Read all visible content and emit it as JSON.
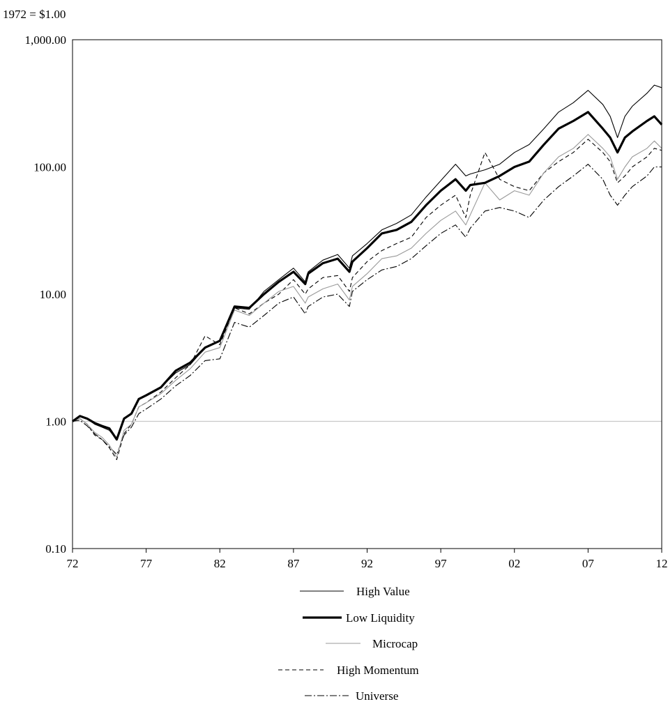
{
  "chart_data": {
    "type": "line",
    "title": "1972 = $1.00",
    "xlabel": "",
    "ylabel": "",
    "y_scale": "log",
    "ylim": [
      0.1,
      1000
    ],
    "xlim": [
      1972,
      2012
    ],
    "grid": false,
    "legend_position": "bottom",
    "reference_line": 1.0,
    "x_ticks": [
      {
        "value": 1972,
        "label": "72"
      },
      {
        "value": 1977,
        "label": "77"
      },
      {
        "value": 1982,
        "label": "82"
      },
      {
        "value": 1987,
        "label": "87"
      },
      {
        "value": 1992,
        "label": "92"
      },
      {
        "value": 1997,
        "label": "97"
      },
      {
        "value": 2002,
        "label": "02"
      },
      {
        "value": 2007,
        "label": "07"
      },
      {
        "value": 2012,
        "label": "12"
      }
    ],
    "y_ticks": [
      {
        "value": 0.1,
        "label": "0.10"
      },
      {
        "value": 1,
        "label": "1.00"
      },
      {
        "value": 10,
        "label": "10.00"
      },
      {
        "value": 100,
        "label": "100.00"
      },
      {
        "value": 1000,
        "label": "1,000.00"
      }
    ],
    "series": [
      {
        "name": "High Value",
        "color": "#000000",
        "style": "thin-solid",
        "points": [
          [
            1972,
            1.0
          ],
          [
            1972.5,
            1.1
          ],
          [
            1973,
            1.05
          ],
          [
            1973.5,
            0.95
          ],
          [
            1974,
            0.9
          ],
          [
            1974.5,
            0.85
          ],
          [
            1975,
            0.72
          ],
          [
            1975.5,
            1.05
          ],
          [
            1976,
            1.15
          ],
          [
            1976.5,
            1.5
          ],
          [
            1977,
            1.6
          ],
          [
            1978,
            1.85
          ],
          [
            1979,
            2.4
          ],
          [
            1980,
            2.8
          ],
          [
            1981,
            3.8
          ],
          [
            1982,
            4.3
          ],
          [
            1983,
            7.8
          ],
          [
            1984,
            7.6
          ],
          [
            1985,
            10.5
          ],
          [
            1986,
            13.0
          ],
          [
            1987,
            16.0
          ],
          [
            1987.8,
            12.5
          ],
          [
            1988,
            15.0
          ],
          [
            1989,
            18.5
          ],
          [
            1990,
            20.5
          ],
          [
            1990.8,
            16.0
          ],
          [
            1991,
            20.0
          ],
          [
            1992,
            25.0
          ],
          [
            1993,
            32.0
          ],
          [
            1994,
            36.0
          ],
          [
            1995,
            42.0
          ],
          [
            1996,
            58.0
          ],
          [
            1997,
            78.0
          ],
          [
            1998,
            105.0
          ],
          [
            1998.7,
            85.0
          ],
          [
            1999,
            88.0
          ],
          [
            2000,
            95.0
          ],
          [
            2001,
            105.0
          ],
          [
            2002,
            130.0
          ],
          [
            2003,
            150.0
          ],
          [
            2004,
            200.0
          ],
          [
            2005,
            270.0
          ],
          [
            2006,
            320.0
          ],
          [
            2007,
            400.0
          ],
          [
            2008,
            310.0
          ],
          [
            2008.5,
            250.0
          ],
          [
            2009,
            170.0
          ],
          [
            2009.5,
            250.0
          ],
          [
            2010,
            300.0
          ],
          [
            2011,
            380.0
          ],
          [
            2011.5,
            440.0
          ],
          [
            2012,
            420.0
          ]
        ]
      },
      {
        "name": "Low Liquidity",
        "color": "#000000",
        "style": "thick-solid",
        "points": [
          [
            1972,
            1.0
          ],
          [
            1972.5,
            1.1
          ],
          [
            1973,
            1.05
          ],
          [
            1973.5,
            0.97
          ],
          [
            1974,
            0.92
          ],
          [
            1974.5,
            0.88
          ],
          [
            1975,
            0.72
          ],
          [
            1975.5,
            1.05
          ],
          [
            1976,
            1.15
          ],
          [
            1976.5,
            1.5
          ],
          [
            1977,
            1.6
          ],
          [
            1978,
            1.85
          ],
          [
            1979,
            2.5
          ],
          [
            1980,
            2.9
          ],
          [
            1981,
            3.8
          ],
          [
            1982,
            4.3
          ],
          [
            1983,
            8.0
          ],
          [
            1984,
            7.8
          ],
          [
            1985,
            10.0
          ],
          [
            1986,
            12.5
          ],
          [
            1987,
            15.0
          ],
          [
            1987.8,
            12.0
          ],
          [
            1988,
            14.5
          ],
          [
            1989,
            17.5
          ],
          [
            1990,
            19.0
          ],
          [
            1990.8,
            15.0
          ],
          [
            1991,
            18.0
          ],
          [
            1992,
            23.0
          ],
          [
            1993,
            30.0
          ],
          [
            1994,
            32.0
          ],
          [
            1995,
            37.0
          ],
          [
            1996,
            50.0
          ],
          [
            1997,
            65.0
          ],
          [
            1998,
            80.0
          ],
          [
            1998.7,
            65.0
          ],
          [
            1999,
            72.0
          ],
          [
            2000,
            75.0
          ],
          [
            2001,
            85.0
          ],
          [
            2002,
            100.0
          ],
          [
            2003,
            110.0
          ],
          [
            2004,
            150.0
          ],
          [
            2005,
            200.0
          ],
          [
            2006,
            230.0
          ],
          [
            2007,
            270.0
          ],
          [
            2008,
            200.0
          ],
          [
            2008.5,
            170.0
          ],
          [
            2009,
            130.0
          ],
          [
            2009.5,
            170.0
          ],
          [
            2010,
            190.0
          ],
          [
            2011,
            230.0
          ],
          [
            2011.5,
            250.0
          ],
          [
            2012,
            215.0
          ]
        ]
      },
      {
        "name": "Microcap",
        "color": "#999999",
        "style": "thin-solid",
        "points": [
          [
            1972,
            1.0
          ],
          [
            1972.5,
            1.05
          ],
          [
            1973,
            0.95
          ],
          [
            1973.5,
            0.82
          ],
          [
            1974,
            0.75
          ],
          [
            1974.5,
            0.65
          ],
          [
            1975,
            0.52
          ],
          [
            1975.5,
            0.85
          ],
          [
            1976,
            0.95
          ],
          [
            1976.5,
            1.3
          ],
          [
            1977,
            1.4
          ],
          [
            1978,
            1.65
          ],
          [
            1979,
            2.1
          ],
          [
            1980,
            2.6
          ],
          [
            1981,
            3.5
          ],
          [
            1982,
            3.8
          ],
          [
            1983,
            7.5
          ],
          [
            1984,
            6.8
          ],
          [
            1985,
            8.5
          ],
          [
            1986,
            10.5
          ],
          [
            1987,
            11.5
          ],
          [
            1987.8,
            8.5
          ],
          [
            1988,
            9.5
          ],
          [
            1989,
            11.0
          ],
          [
            1990,
            12.0
          ],
          [
            1990.8,
            9.0
          ],
          [
            1991,
            11.5
          ],
          [
            1992,
            14.5
          ],
          [
            1993,
            19.0
          ],
          [
            1994,
            20.0
          ],
          [
            1995,
            23.0
          ],
          [
            1996,
            30.0
          ],
          [
            1997,
            38.0
          ],
          [
            1998,
            45.0
          ],
          [
            1998.7,
            35.0
          ],
          [
            1999,
            42.0
          ],
          [
            2000,
            75.0
          ],
          [
            2001,
            55.0
          ],
          [
            2002,
            65.0
          ],
          [
            2003,
            60.0
          ],
          [
            2004,
            90.0
          ],
          [
            2005,
            120.0
          ],
          [
            2006,
            140.0
          ],
          [
            2007,
            180.0
          ],
          [
            2008,
            140.0
          ],
          [
            2008.5,
            120.0
          ],
          [
            2009,
            80.0
          ],
          [
            2009.5,
            100.0
          ],
          [
            2010,
            120.0
          ],
          [
            2011,
            140.0
          ],
          [
            2011.5,
            160.0
          ],
          [
            2012,
            140.0
          ]
        ]
      },
      {
        "name": "High Momentum",
        "color": "#000000",
        "style": "dashed",
        "points": [
          [
            1972,
            1.0
          ],
          [
            1972.5,
            1.05
          ],
          [
            1973,
            0.95
          ],
          [
            1973.5,
            0.78
          ],
          [
            1974,
            0.72
          ],
          [
            1974.5,
            0.62
          ],
          [
            1975,
            0.5
          ],
          [
            1975.5,
            0.8
          ],
          [
            1976,
            0.95
          ],
          [
            1976.5,
            1.3
          ],
          [
            1977,
            1.4
          ],
          [
            1978,
            1.7
          ],
          [
            1979,
            2.2
          ],
          [
            1980,
            2.8
          ],
          [
            1981,
            4.7
          ],
          [
            1982,
            4.0
          ],
          [
            1983,
            7.8
          ],
          [
            1984,
            7.0
          ],
          [
            1985,
            8.5
          ],
          [
            1986,
            10.0
          ],
          [
            1987,
            13.0
          ],
          [
            1987.8,
            10.0
          ],
          [
            1988,
            11.0
          ],
          [
            1989,
            13.5
          ],
          [
            1990,
            14.0
          ],
          [
            1990.8,
            10.5
          ],
          [
            1991,
            13.5
          ],
          [
            1992,
            18.0
          ],
          [
            1993,
            22.0
          ],
          [
            1994,
            25.0
          ],
          [
            1995,
            28.0
          ],
          [
            1996,
            40.0
          ],
          [
            1997,
            50.0
          ],
          [
            1998,
            60.0
          ],
          [
            1998.7,
            40.0
          ],
          [
            1999,
            60.0
          ],
          [
            2000,
            130.0
          ],
          [
            2001,
            80.0
          ],
          [
            2002,
            70.0
          ],
          [
            2003,
            65.0
          ],
          [
            2004,
            90.0
          ],
          [
            2005,
            110.0
          ],
          [
            2006,
            130.0
          ],
          [
            2007,
            165.0
          ],
          [
            2008,
            130.0
          ],
          [
            2008.5,
            110.0
          ],
          [
            2009,
            75.0
          ],
          [
            2009.5,
            85.0
          ],
          [
            2010,
            100.0
          ],
          [
            2011,
            120.0
          ],
          [
            2011.5,
            140.0
          ],
          [
            2012,
            135.0
          ]
        ]
      },
      {
        "name": "Universe",
        "color": "#000000",
        "style": "dash-dot",
        "points": [
          [
            1972,
            1.0
          ],
          [
            1972.5,
            1.02
          ],
          [
            1973,
            0.92
          ],
          [
            1973.5,
            0.8
          ],
          [
            1974,
            0.72
          ],
          [
            1974.5,
            0.63
          ],
          [
            1975,
            0.55
          ],
          [
            1975.5,
            0.78
          ],
          [
            1976,
            0.9
          ],
          [
            1976.5,
            1.15
          ],
          [
            1977,
            1.25
          ],
          [
            1978,
            1.5
          ],
          [
            1979,
            1.9
          ],
          [
            1980,
            2.3
          ],
          [
            1981,
            3.0
          ],
          [
            1982,
            3.1
          ],
          [
            1983,
            6.0
          ],
          [
            1984,
            5.5
          ],
          [
            1985,
            6.8
          ],
          [
            1986,
            8.5
          ],
          [
            1987,
            9.5
          ],
          [
            1987.8,
            7.0
          ],
          [
            1988,
            8.0
          ],
          [
            1989,
            9.5
          ],
          [
            1990,
            10.0
          ],
          [
            1990.8,
            8.0
          ],
          [
            1991,
            10.5
          ],
          [
            1992,
            13.0
          ],
          [
            1993,
            15.5
          ],
          [
            1994,
            16.5
          ],
          [
            1995,
            19.0
          ],
          [
            1996,
            24.0
          ],
          [
            1997,
            30.0
          ],
          [
            1998,
            35.0
          ],
          [
            1998.7,
            28.0
          ],
          [
            1999,
            33.0
          ],
          [
            2000,
            45.0
          ],
          [
            2001,
            48.0
          ],
          [
            2002,
            45.0
          ],
          [
            2003,
            40.0
          ],
          [
            2004,
            55.0
          ],
          [
            2005,
            70.0
          ],
          [
            2006,
            85.0
          ],
          [
            2007,
            105.0
          ],
          [
            2008,
            80.0
          ],
          [
            2008.5,
            60.0
          ],
          [
            2009,
            50.0
          ],
          [
            2009.5,
            60.0
          ],
          [
            2010,
            70.0
          ],
          [
            2011,
            85.0
          ],
          [
            2011.5,
            100.0
          ],
          [
            2012,
            100.0
          ]
        ]
      }
    ]
  }
}
